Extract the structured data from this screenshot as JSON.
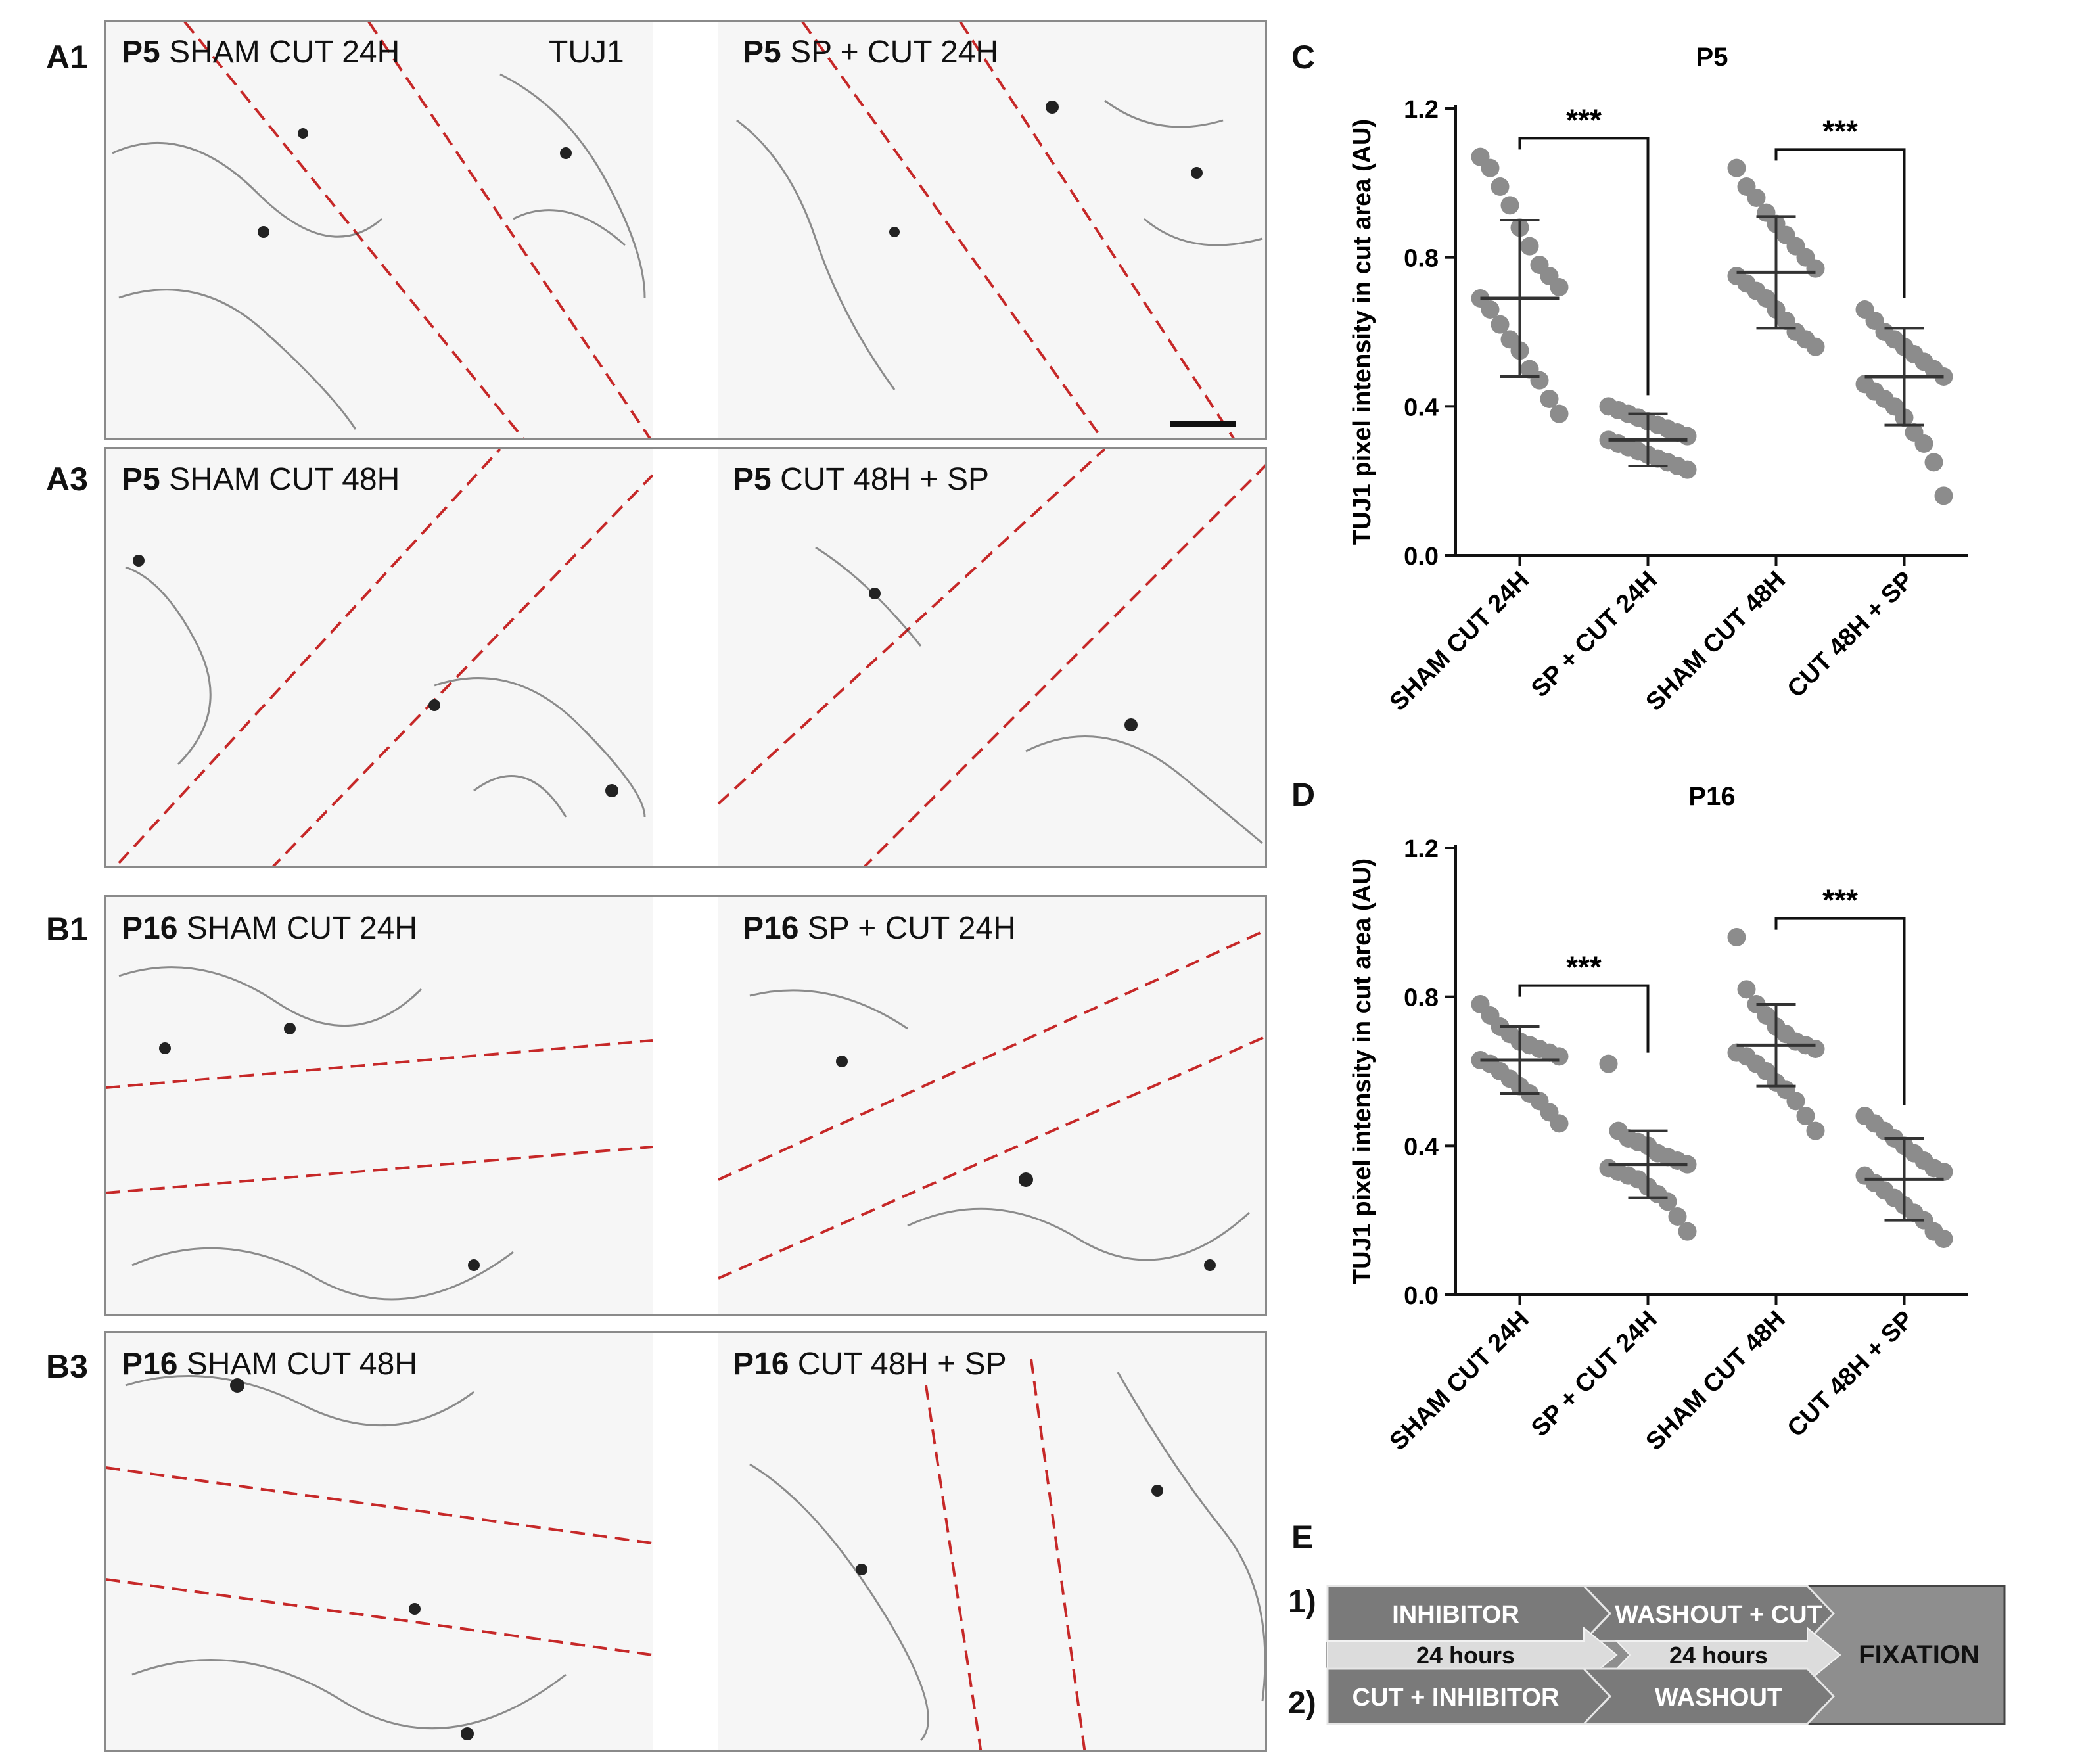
{
  "micro_panels": [
    {
      "id": "A1",
      "tag": "P5",
      "text": "SHAM CUT 24H",
      "extra": "TUJ1"
    },
    {
      "id": "A2",
      "tag": "P5",
      "text": "SP + CUT 24H"
    },
    {
      "id": "A3",
      "tag": "P5",
      "text": "SHAM CUT 48H"
    },
    {
      "id": "A4",
      "tag": "P5",
      "text": "CUT 48H + SP"
    },
    {
      "id": "B1",
      "tag": "P16",
      "text": "SHAM CUT 24H"
    },
    {
      "id": "B2",
      "tag": "P16",
      "text": "SP + CUT 24H"
    },
    {
      "id": "B3",
      "tag": "P16",
      "text": "SHAM CUT 48H"
    },
    {
      "id": "B4",
      "tag": "P16",
      "text": "CUT 48H + SP"
    }
  ],
  "panel_letters": {
    "c": "C",
    "d": "D",
    "e": "E"
  },
  "chart_data": [
    {
      "type": "scatter",
      "title": "P5",
      "ylabel": "TUJ1 pixel intensity in cut area (AU)",
      "ylim": [
        0,
        1.2
      ],
      "yticks": [
        "0.0",
        "0.4",
        "0.8",
        "1.2"
      ],
      "categories": [
        "SHAM CUT 24H",
        "SP + CUT 24H",
        "SHAM CUT 48H",
        "CUT 48H + SP"
      ],
      "means": [
        0.69,
        0.31,
        0.76,
        0.48
      ],
      "sd": [
        0.21,
        0.07,
        0.15,
        0.13
      ],
      "points": [
        [
          1.07,
          1.04,
          0.99,
          0.94,
          0.88,
          0.83,
          0.78,
          0.75,
          0.72,
          0.69,
          0.66,
          0.62,
          0.58,
          0.55,
          0.5,
          0.47,
          0.42,
          0.38
        ],
        [
          0.4,
          0.39,
          0.38,
          0.37,
          0.36,
          0.35,
          0.34,
          0.33,
          0.32,
          0.31,
          0.3,
          0.29,
          0.28,
          0.27,
          0.26,
          0.25,
          0.24,
          0.23
        ],
        [
          1.04,
          0.99,
          0.96,
          0.92,
          0.89,
          0.86,
          0.83,
          0.8,
          0.77,
          0.75,
          0.73,
          0.71,
          0.69,
          0.66,
          0.63,
          0.6,
          0.58,
          0.56
        ],
        [
          0.66,
          0.63,
          0.6,
          0.58,
          0.56,
          0.54,
          0.52,
          0.5,
          0.48,
          0.46,
          0.44,
          0.42,
          0.4,
          0.37,
          0.33,
          0.3,
          0.25,
          0.16
        ]
      ],
      "significance": [
        {
          "from": 0,
          "to": 1,
          "label": "***"
        },
        {
          "from": 2,
          "to": 3,
          "label": "***"
        }
      ]
    },
    {
      "type": "scatter",
      "title": "P16",
      "ylabel": "TUJ1 pixel intensity in cut area (AU)",
      "ylim": [
        0,
        1.2
      ],
      "yticks": [
        "0.0",
        "0.4",
        "0.8",
        "1.2"
      ],
      "categories": [
        "SHAM CUT 24H",
        "SP + CUT 24H",
        "SHAM CUT 48H",
        "CUT 48H + SP"
      ],
      "means": [
        0.63,
        0.35,
        0.67,
        0.31
      ],
      "sd": [
        0.09,
        0.09,
        0.11,
        0.11
      ],
      "points": [
        [
          0.78,
          0.75,
          0.72,
          0.7,
          0.68,
          0.67,
          0.66,
          0.65,
          0.64,
          0.63,
          0.62,
          0.6,
          0.58,
          0.56,
          0.54,
          0.52,
          0.49,
          0.46
        ],
        [
          0.62,
          0.44,
          0.42,
          0.41,
          0.4,
          0.38,
          0.37,
          0.36,
          0.35,
          0.34,
          0.33,
          0.32,
          0.31,
          0.29,
          0.27,
          0.25,
          0.21,
          0.17
        ],
        [
          0.96,
          0.82,
          0.78,
          0.75,
          0.72,
          0.7,
          0.68,
          0.67,
          0.66,
          0.65,
          0.64,
          0.62,
          0.6,
          0.57,
          0.55,
          0.52,
          0.48,
          0.44
        ],
        [
          0.48,
          0.46,
          0.44,
          0.42,
          0.4,
          0.38,
          0.36,
          0.34,
          0.33,
          0.32,
          0.3,
          0.28,
          0.26,
          0.24,
          0.22,
          0.2,
          0.17,
          0.15
        ]
      ],
      "significance": [
        {
          "from": 0,
          "to": 1,
          "label": "***"
        },
        {
          "from": 2,
          "to": 3,
          "label": "***"
        }
      ]
    }
  ],
  "scheme": {
    "row1_label": "1)",
    "row2_label": "2)",
    "inhibitor": "INHIBITOR",
    "washout_cut": "WASHOUT + CUT",
    "hours1": "24 hours",
    "hours2": "24 hours",
    "cut_inhibitor": "CUT + INHIBITOR",
    "washout": "WASHOUT",
    "fixation": "FIXATION"
  }
}
